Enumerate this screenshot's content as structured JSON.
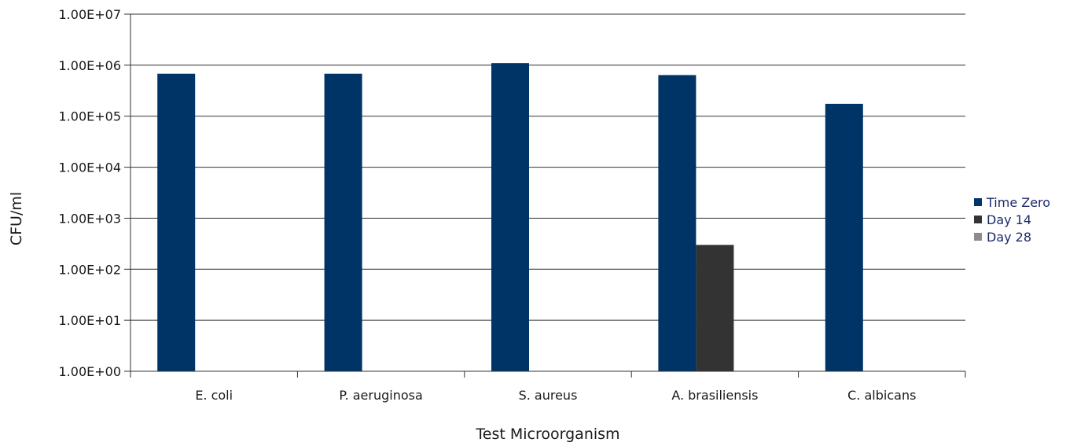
{
  "chart_data": {
    "type": "bar",
    "title": "",
    "xlabel": "Test Microorganism",
    "ylabel": "CFU/ml",
    "yscale": "log",
    "ylim": [
      1,
      10000000
    ],
    "yticks": [
      "1.00E+00",
      "1.00E+01",
      "1.00E+02",
      "1.00E+03",
      "1.00E+04",
      "1.00E+05",
      "1.00E+06",
      "1.00E+07"
    ],
    "categories": [
      "E. coli",
      "P. aeruginosa",
      "S. aureus",
      "A. brasiliensis",
      "C. albicans"
    ],
    "series": [
      {
        "name": "Time Zero",
        "color": "#003366",
        "values": [
          680000,
          680000,
          1100000,
          640000,
          175000
        ]
      },
      {
        "name": "Day 14",
        "color": "#333333",
        "values": [
          null,
          null,
          null,
          300,
          null
        ]
      },
      {
        "name": "Day 28",
        "color": "#8c8c8c",
        "values": [
          null,
          null,
          null,
          null,
          null
        ]
      }
    ],
    "grid": true,
    "legend_position": "right"
  }
}
